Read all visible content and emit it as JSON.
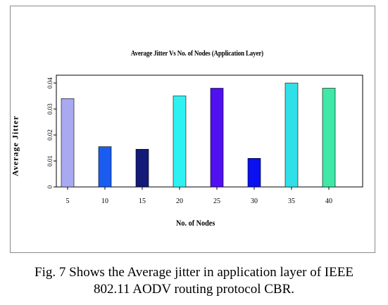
{
  "chart_data": {
    "type": "bar",
    "title": "Average Jitter Vs No. of Nodes (Application Layer)",
    "xlabel": "No. of Nodes",
    "ylabel": "Average Jitter",
    "categories": [
      "5",
      "10",
      "15",
      "20",
      "25",
      "30",
      "35",
      "40"
    ],
    "values": [
      0.034,
      0.0155,
      0.0145,
      0.035,
      0.038,
      0.011,
      0.04,
      0.038
    ],
    "colors": [
      "#a9a9f2",
      "#1a5cf0",
      "#141a78",
      "#2ef2f2",
      "#5010f0",
      "#0a10f0",
      "#30e0e8",
      "#40e8a8"
    ],
    "yticks": [
      "0",
      "0.01",
      "0.02",
      "0.03",
      "0.04"
    ],
    "ylim": [
      0,
      0.043
    ],
    "grid": false
  },
  "caption": {
    "line1": "Fig. 7 Shows the Average jitter in application layer of IEEE",
    "line2": "802.11 AODV routing protocol CBR."
  }
}
